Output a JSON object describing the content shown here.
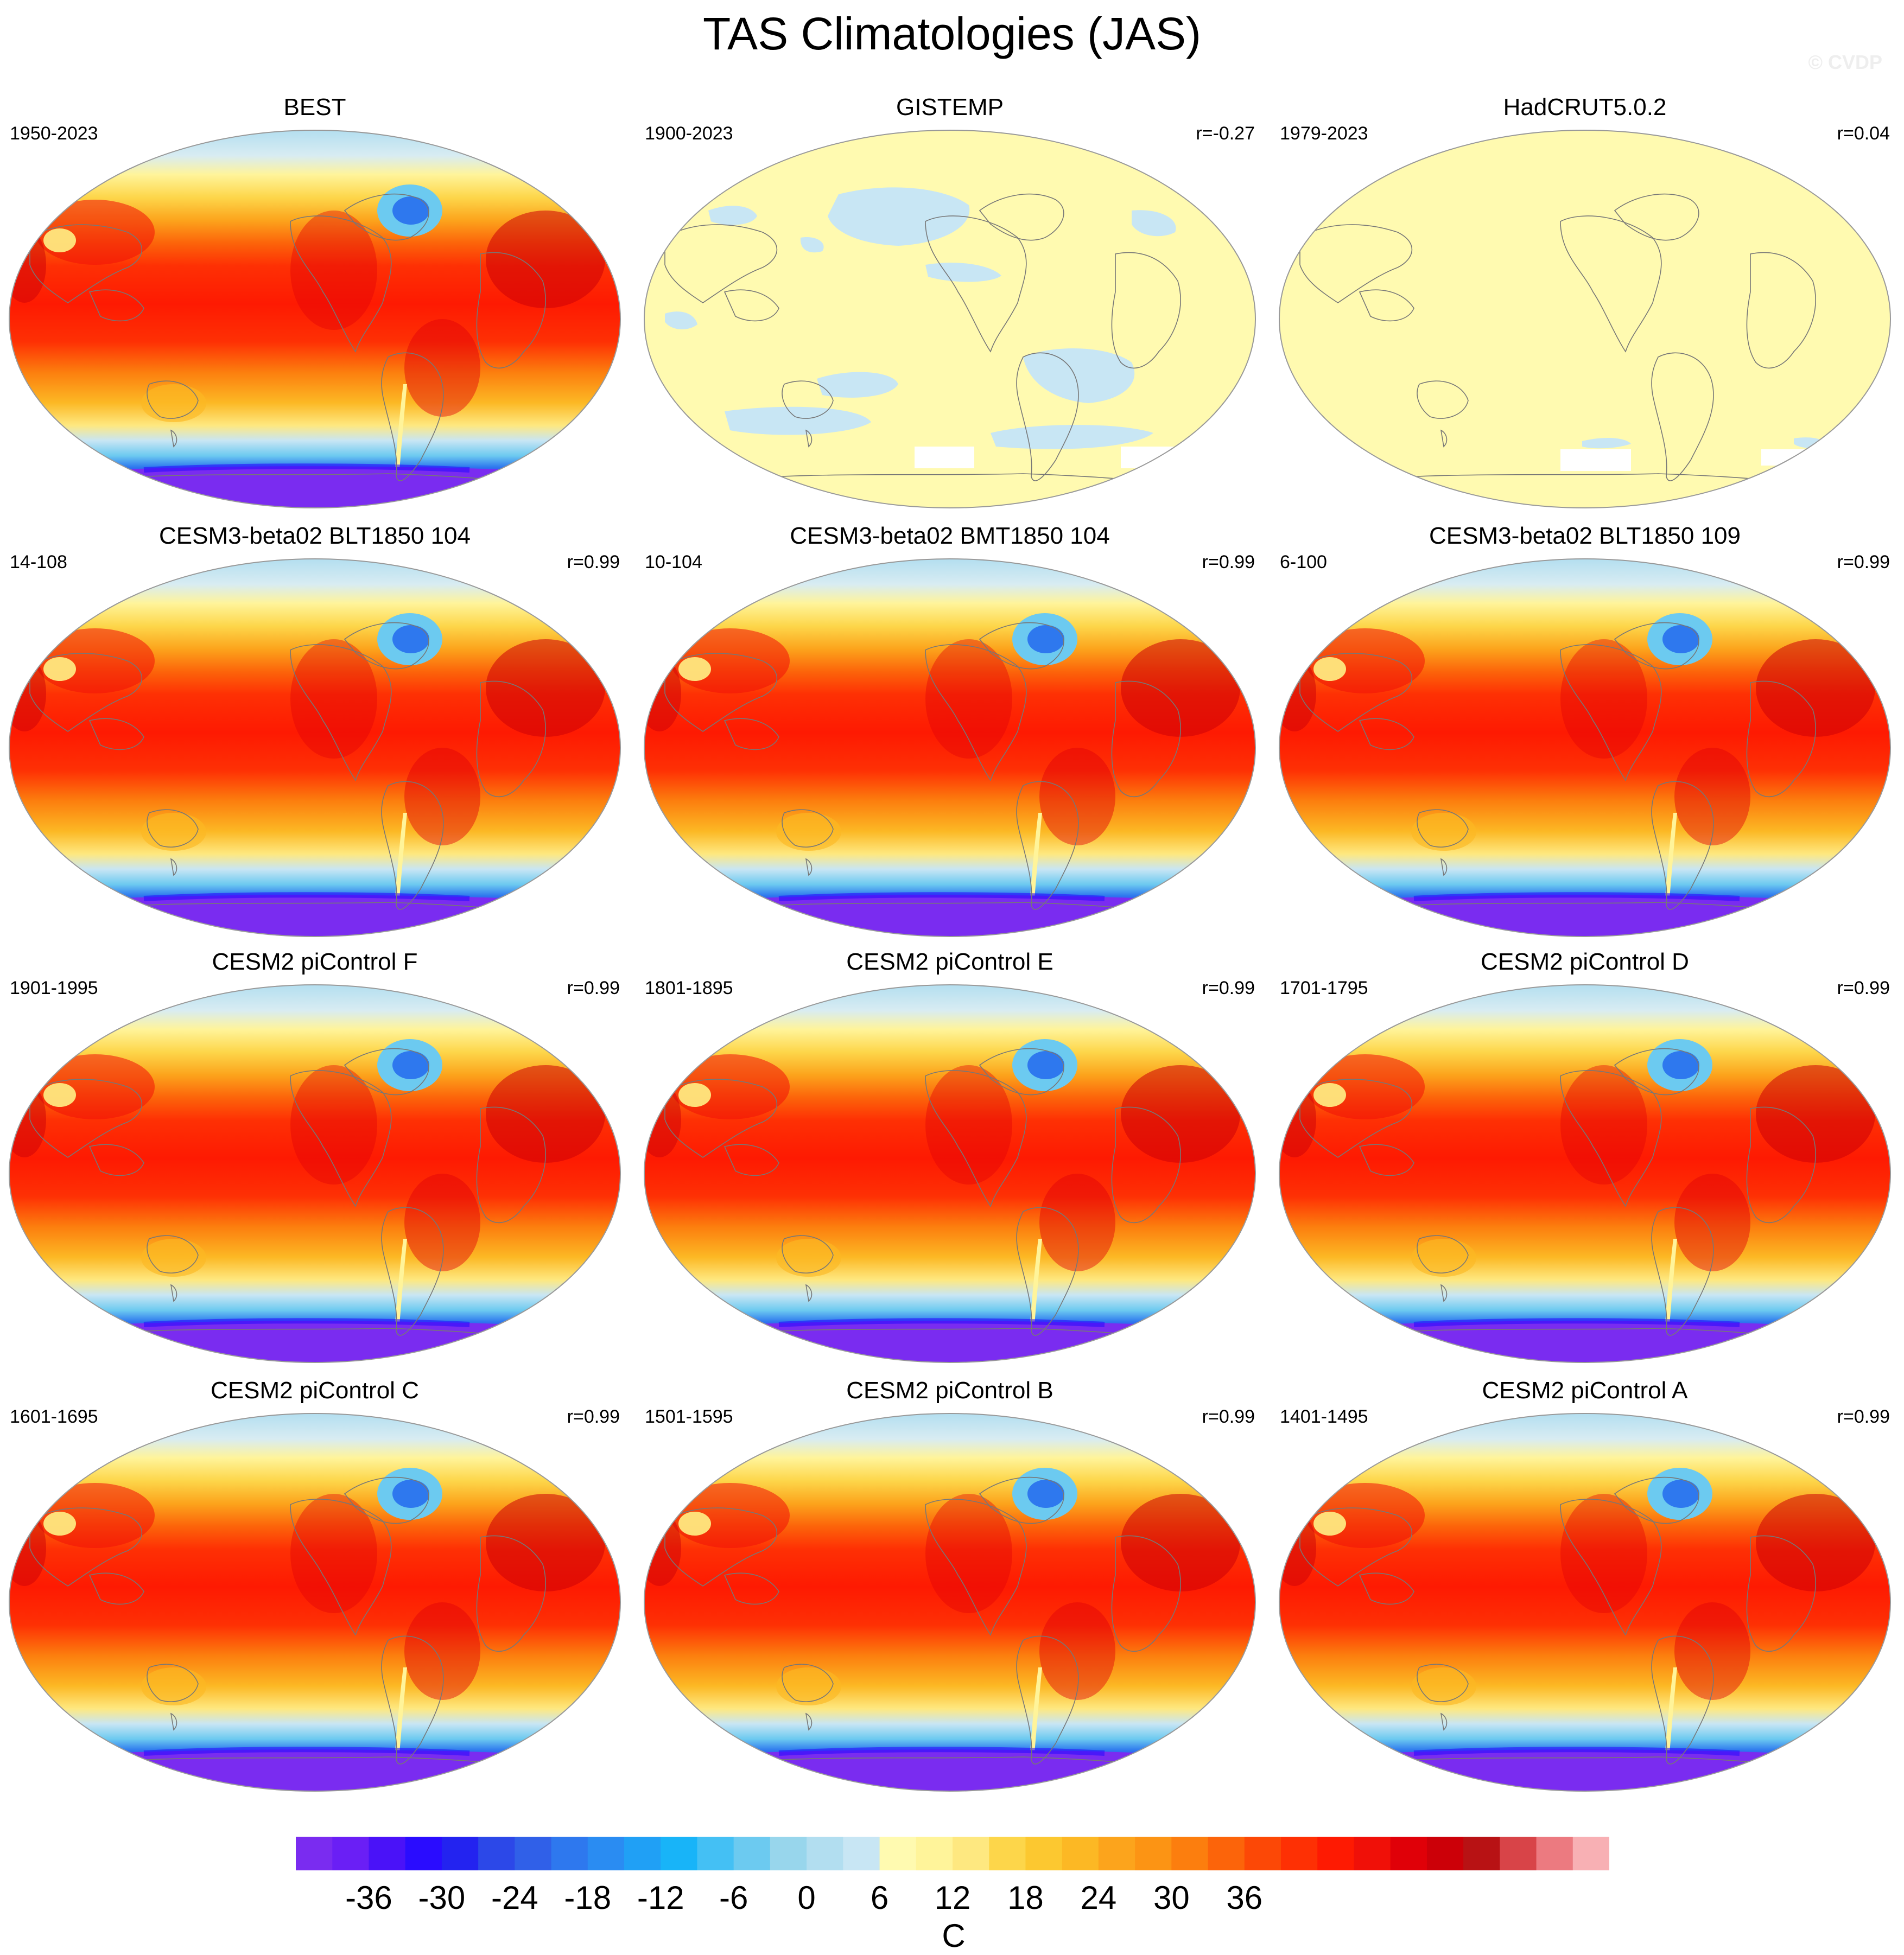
{
  "figure": {
    "title": "TAS Climatologies (JAS)",
    "watermark": "© CVDP"
  },
  "panels": [
    {
      "title": "BEST",
      "years": "1950-2023",
      "corr": "",
      "style": "obs_best"
    },
    {
      "title": "GISTEMP",
      "years": "1900-2023",
      "corr": "r=-0.27",
      "style": "obs_gistemp"
    },
    {
      "title": "HadCRUT5.0.2",
      "years": "1979-2023",
      "corr": "r=0.04",
      "style": "obs_hadcrut"
    },
    {
      "title": "CESM3-beta02 BLT1850 104",
      "years": "14-108",
      "corr": "r=0.99",
      "style": "model"
    },
    {
      "title": "CESM3-beta02 BMT1850 104",
      "years": "10-104",
      "corr": "r=0.99",
      "style": "model"
    },
    {
      "title": "CESM3-beta02 BLT1850 109",
      "years": "6-100",
      "corr": "r=0.99",
      "style": "model"
    },
    {
      "title": "CESM2 piControl F",
      "years": "1901-1995",
      "corr": "r=0.99",
      "style": "model"
    },
    {
      "title": "CESM2 piControl E",
      "years": "1801-1895",
      "corr": "r=0.99",
      "style": "model"
    },
    {
      "title": "CESM2 piControl D",
      "years": "1701-1795",
      "corr": "r=0.99",
      "style": "model"
    },
    {
      "title": "CESM2 piControl C",
      "years": "1601-1695",
      "corr": "r=0.99",
      "style": "model"
    },
    {
      "title": "CESM2 piControl B",
      "years": "1501-1595",
      "corr": "r=0.99",
      "style": "model"
    },
    {
      "title": "CESM2 piControl A",
      "years": "1401-1495",
      "corr": "r=0.99",
      "style": "model"
    }
  ],
  "colorbar": {
    "units": "C",
    "ticks": [
      "-36",
      "-30",
      "-24",
      "-18",
      "-12",
      "-6",
      "0",
      "6",
      "12",
      "18",
      "24",
      "30",
      "36"
    ],
    "colors": [
      "#7a2cf0",
      "#6a1ff5",
      "#4a12f8",
      "#2a0cff",
      "#2323f0",
      "#2c48e8",
      "#3060e8",
      "#2e78ee",
      "#2a8cf2",
      "#20a0f5",
      "#18b4f8",
      "#44c0f4",
      "#6ccaf0",
      "#98d6ec",
      "#b2def0",
      "#c8e6f4",
      "#fffab0",
      "#fff49a",
      "#fee880",
      "#fdd64a",
      "#fcc830",
      "#fcb824",
      "#fca41c",
      "#fc9414",
      "#fc7e0e",
      "#fc640a",
      "#fc4806",
      "#fe3004",
      "#fe1a02",
      "#f01008",
      "#e00008",
      "#cc0008",
      "#b81214",
      "#d84448",
      "#ec7a80",
      "#f8b0b4"
    ],
    "levels_min": -39,
    "levels_step": 3
  }
}
